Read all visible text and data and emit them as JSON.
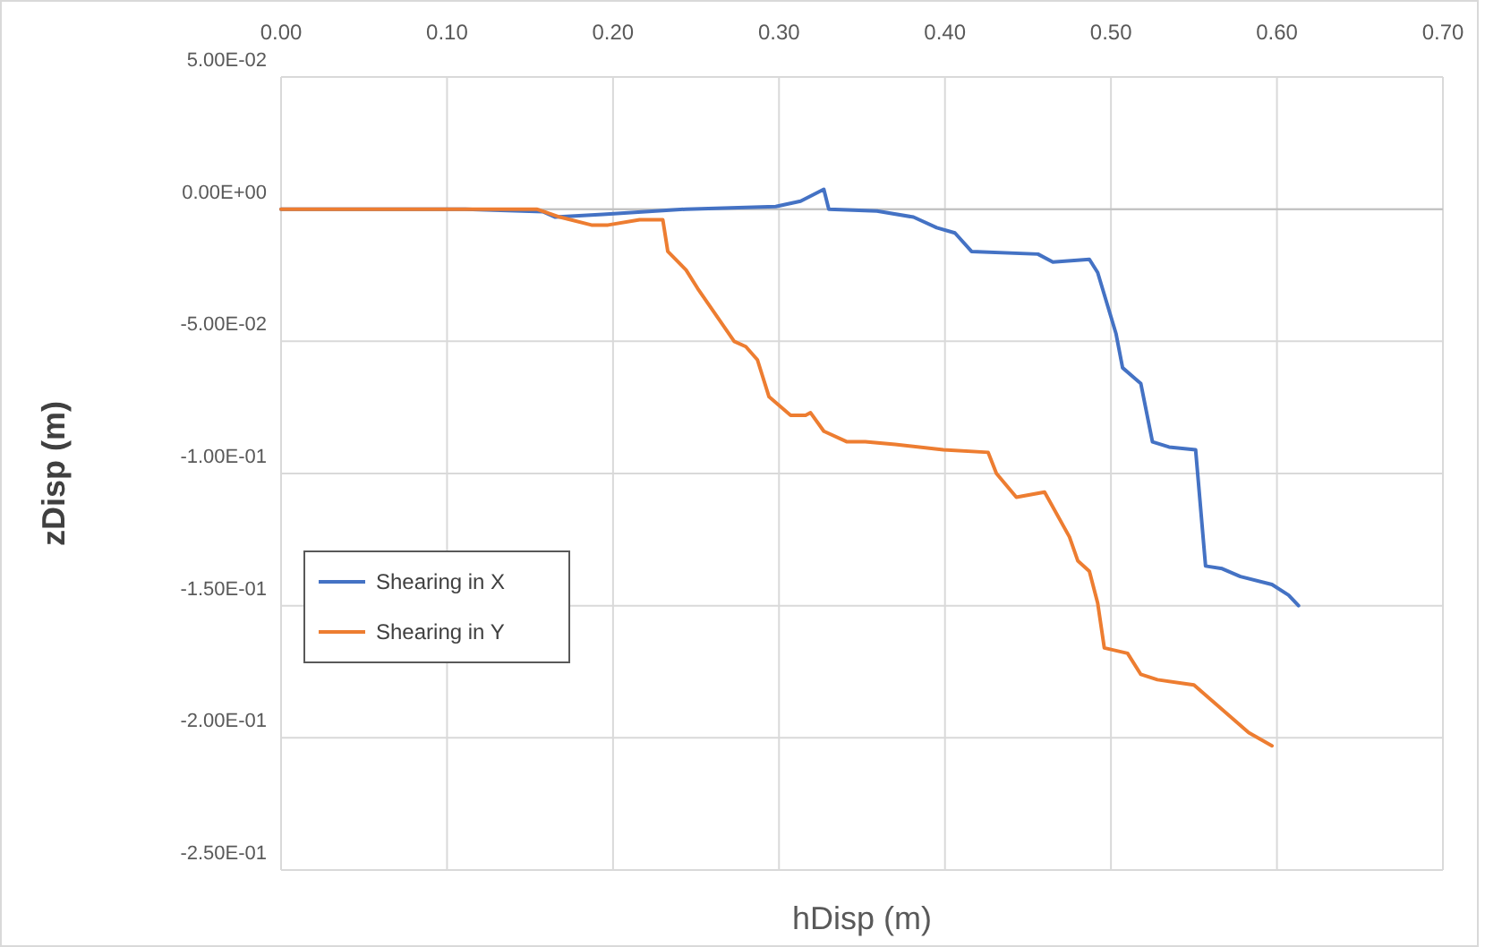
{
  "chart_data": {
    "type": "line",
    "xlabel": "hDisp (m)",
    "ylabel": "zDisp (m)",
    "xlim": [
      0,
      0.7
    ],
    "ylim": [
      -0.25,
      0.05
    ],
    "xticks": [
      {
        "value": 0,
        "label": "0.00"
      },
      {
        "value": 0.1,
        "label": "0.10"
      },
      {
        "value": 0.2,
        "label": "0.20"
      },
      {
        "value": 0.3,
        "label": "0.30"
      },
      {
        "value": 0.4,
        "label": "0.40"
      },
      {
        "value": 0.5,
        "label": "0.50"
      },
      {
        "value": 0.6,
        "label": "0.60"
      },
      {
        "value": 0.7,
        "label": "0.70"
      }
    ],
    "yticks": [
      {
        "value": 0.05,
        "label": "5.00E-02"
      },
      {
        "value": 0,
        "label": "0.00E+00"
      },
      {
        "value": -0.05,
        "label": "-5.00E-02"
      },
      {
        "value": -0.1,
        "label": "-1.00E-01"
      },
      {
        "value": -0.15,
        "label": "-1.50E-01"
      },
      {
        "value": -0.2,
        "label": "-2.00E-01"
      },
      {
        "value": -0.25,
        "label": "-2.50E-01"
      }
    ],
    "grid": true,
    "legend": "bottom left",
    "marker": "none",
    "line_style": "solid",
    "series": [
      {
        "name": "Shearing in X",
        "color": "#4472c4",
        "x": [
          0,
          0.111,
          0.158,
          0.165,
          0.194,
          0.244,
          0.298,
          0.313,
          0.327,
          0.33,
          0.359,
          0.381,
          0.395,
          0.406,
          0.416,
          0.456,
          0.465,
          0.487,
          0.492,
          0.503,
          0.507,
          0.518,
          0.525,
          0.535,
          0.551,
          0.557,
          0.567,
          0.578,
          0.597,
          0.607,
          0.613
        ],
        "values": [
          0,
          0,
          -0.001,
          -0.003,
          -0.002,
          0,
          0.001,
          0.003,
          0.0075,
          0,
          -0.0007,
          -0.003,
          -0.007,
          -0.009,
          -0.016,
          -0.017,
          -0.02,
          -0.019,
          -0.024,
          -0.047,
          -0.06,
          -0.066,
          -0.088,
          -0.09,
          -0.091,
          -0.135,
          -0.136,
          -0.139,
          -0.142,
          -0.146,
          -0.15
        ]
      },
      {
        "name": "Shearing in Y",
        "color": "#ed7d31",
        "x": [
          0,
          0.154,
          0.168,
          0.187,
          0.197,
          0.216,
          0.23,
          0.233,
          0.244,
          0.251,
          0.273,
          0.28,
          0.287,
          0.294,
          0.307,
          0.316,
          0.319,
          0.327,
          0.341,
          0.352,
          0.37,
          0.399,
          0.426,
          0.431,
          0.443,
          0.46,
          0.475,
          0.48,
          0.487,
          0.492,
          0.496,
          0.51,
          0.518,
          0.528,
          0.55,
          0.561,
          0.583,
          0.597
        ],
        "values": [
          0,
          0,
          -0.003,
          -0.006,
          -0.006,
          -0.004,
          -0.004,
          -0.016,
          -0.023,
          -0.03,
          -0.05,
          -0.052,
          -0.057,
          -0.071,
          -0.078,
          -0.078,
          -0.077,
          -0.084,
          -0.088,
          -0.088,
          -0.089,
          -0.091,
          -0.092,
          -0.1,
          -0.109,
          -0.107,
          -0.124,
          -0.133,
          -0.137,
          -0.149,
          -0.166,
          -0.168,
          -0.176,
          -0.178,
          -0.18,
          -0.186,
          -0.198,
          -0.203
        ]
      }
    ]
  }
}
